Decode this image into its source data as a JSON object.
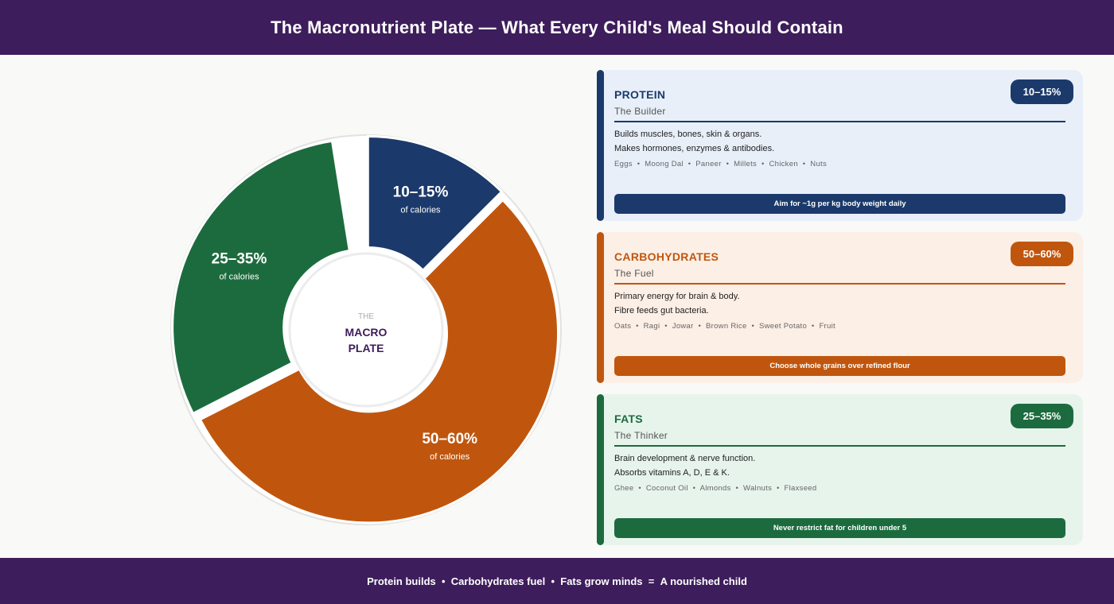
{
  "header": {
    "title": "The Macronutrient Plate — What Every Child's Meal Should Contain"
  },
  "footer": {
    "parts": [
      "Protein builds",
      "  •  ",
      "Carbohydrates fuel",
      "  •  ",
      "Fats grow minds",
      "  =  ",
      "A nourished child"
    ]
  },
  "center_label": {
    "line1": "THE",
    "line2": "MACRO",
    "line3": "PLATE"
  },
  "colors": {
    "protein": "#1b3a6b",
    "carbs": "#c0560e",
    "fats": "#1c6b3e",
    "brand": "#3d1d5b"
  },
  "chart_data": {
    "type": "pie",
    "title": "The Macronutrient Plate",
    "subtype": "donut",
    "center_text": "THE MACRO PLATE",
    "slices": [
      {
        "name": "Protein",
        "label": "10–15%",
        "sublabel": "of calories",
        "range": [
          10,
          15
        ],
        "value": 12.5,
        "color": "#1b3a6b"
      },
      {
        "name": "Carbohydrates",
        "label": "50–60%",
        "sublabel": "of calories",
        "range": [
          50,
          60
        ],
        "value": 55,
        "color": "#c0560e"
      },
      {
        "name": "Fats",
        "label": "25–35%",
        "sublabel": "of calories",
        "range": [
          25,
          35
        ],
        "value": 30,
        "color": "#1c6b3e"
      }
    ],
    "units": "percent of calories"
  },
  "cards": [
    {
      "key": "protein",
      "title": "PROTEIN",
      "subtitle": "The Builder",
      "badge": "10–15%",
      "desc1": "Builds muscles, bones, skin & organs.",
      "desc2": "Makes hormones, enzymes & antibodies.",
      "foods": [
        "Eggs",
        "Moong Dal",
        "Paneer",
        "Millets",
        "Chicken",
        "Nuts"
      ],
      "tip": "Aim for ~1g per kg body weight daily",
      "color": "#1b3a6b"
    },
    {
      "key": "carbs",
      "title": "CARBOHYDRATES",
      "subtitle": "The Fuel",
      "badge": "50–60%",
      "desc1": "Primary energy for brain & body.",
      "desc2": "Fibre feeds gut bacteria.",
      "foods": [
        "Oats",
        "Ragi",
        "Jowar",
        "Brown Rice",
        "Sweet Potato",
        "Fruit"
      ],
      "tip": "Choose whole grains over refined flour",
      "color": "#c0560e"
    },
    {
      "key": "fats",
      "title": "FATS",
      "subtitle": "The Thinker",
      "badge": "25–35%",
      "desc1": "Brain development & nerve function.",
      "desc2": "Absorbs vitamins A, D, E & K.",
      "foods": [
        "Ghee",
        "Coconut Oil",
        "Almonds",
        "Walnuts",
        "Flaxseed"
      ],
      "tip": "Never restrict fat for children under 5",
      "color": "#1c6b3e"
    }
  ]
}
